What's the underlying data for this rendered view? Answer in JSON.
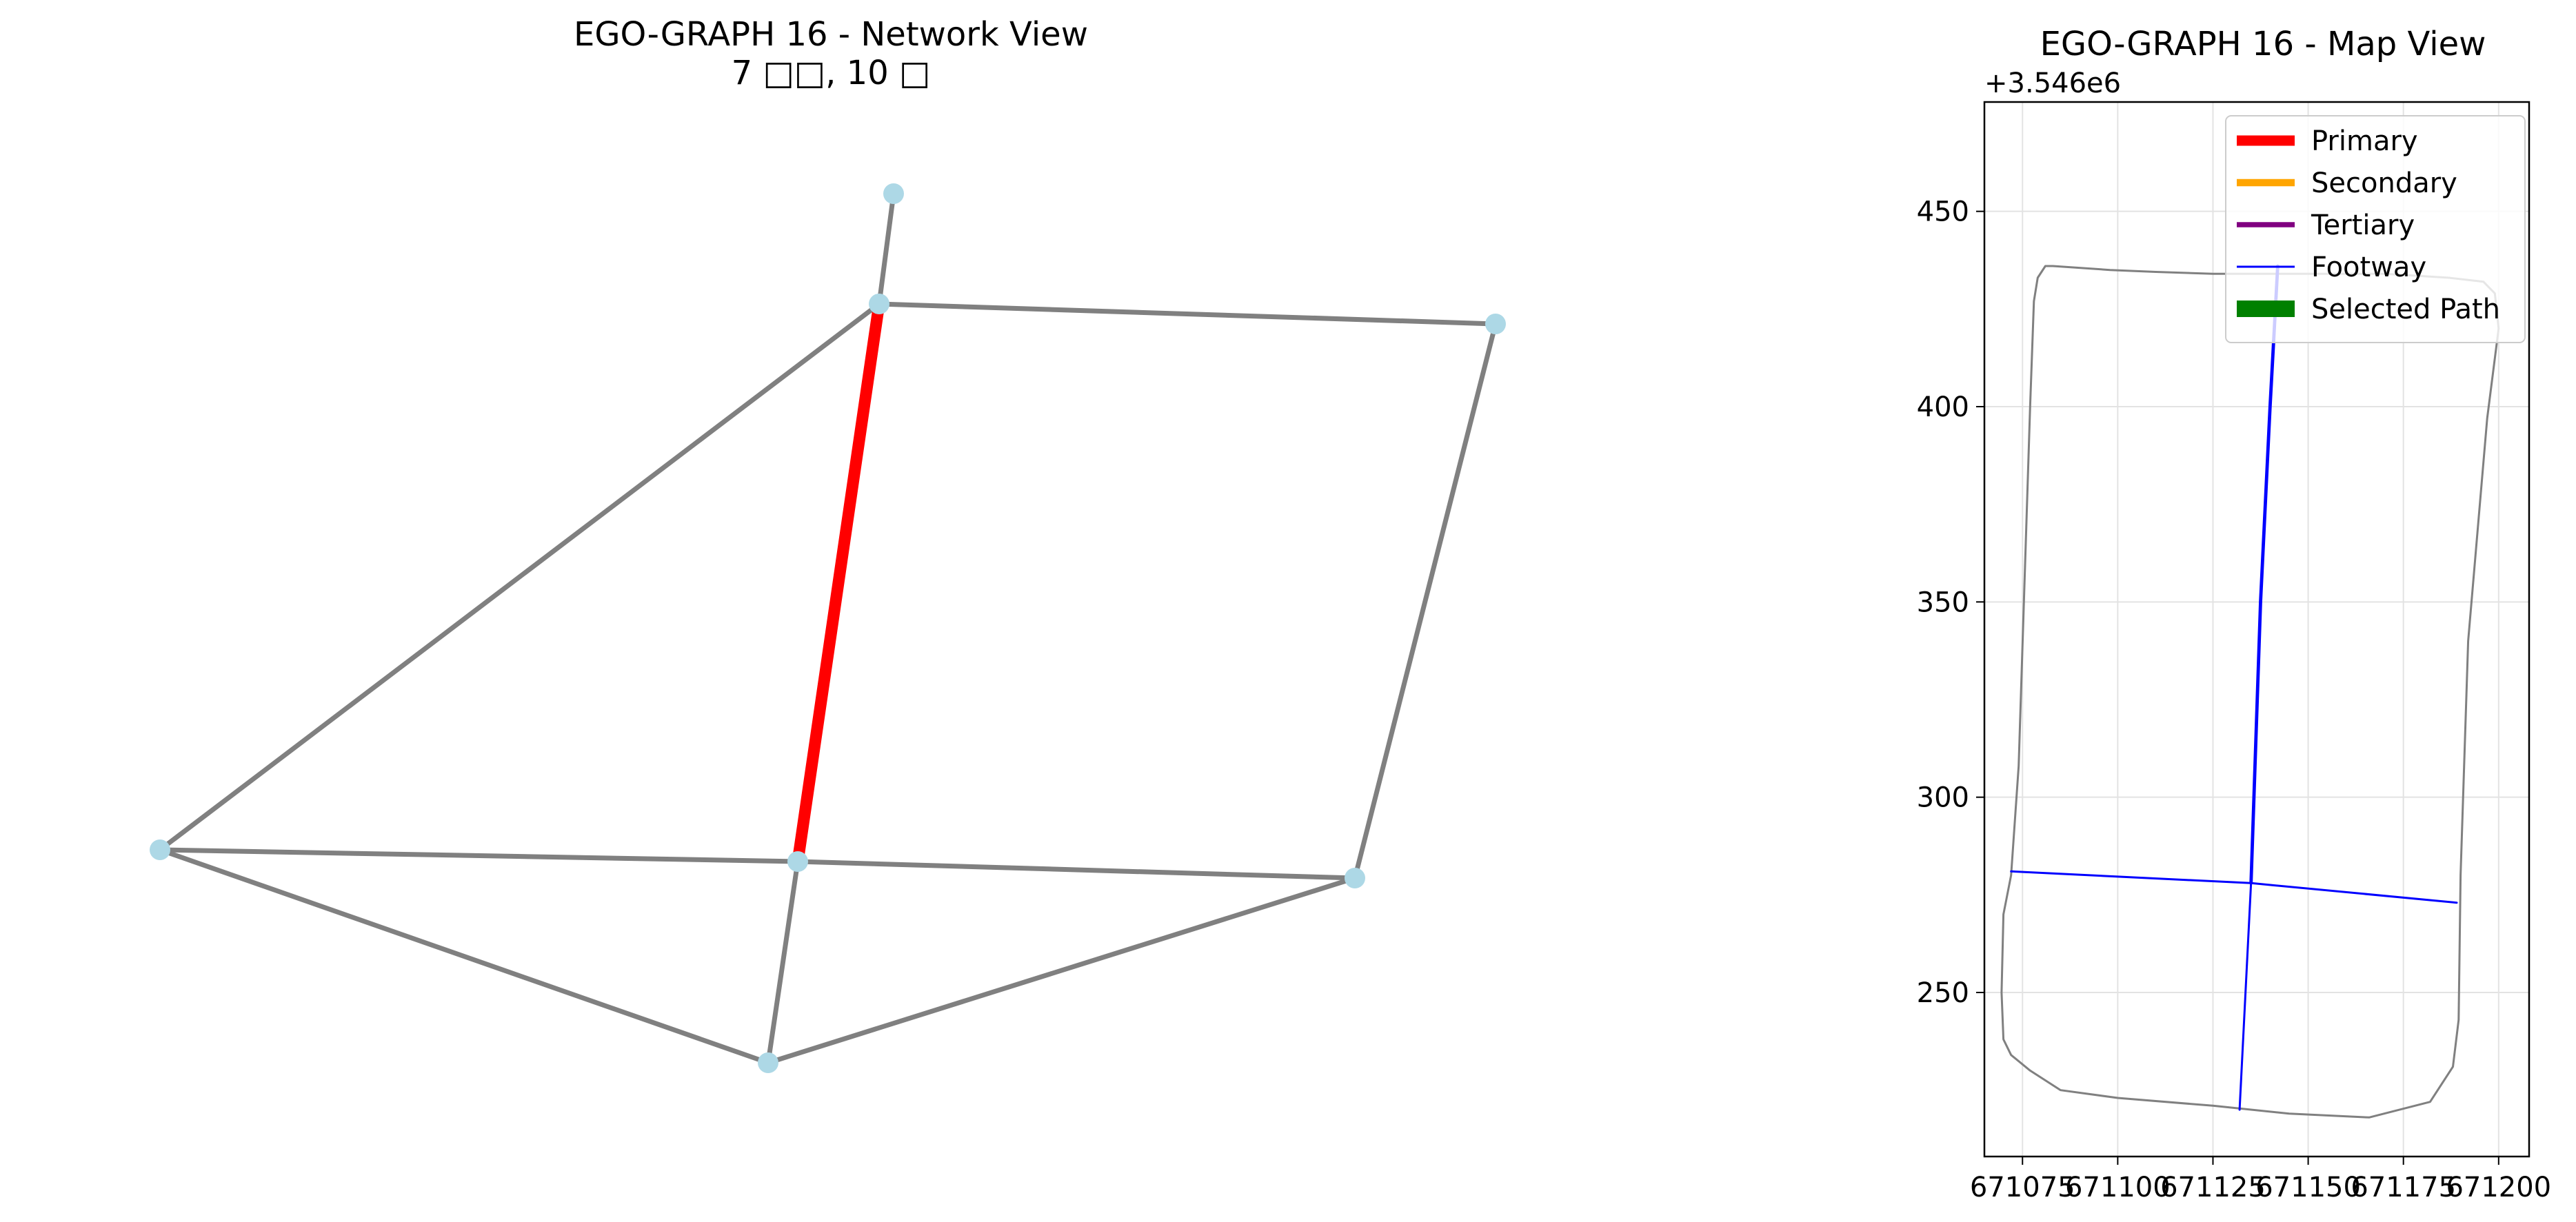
{
  "figure": {
    "network_view": {
      "title_line1": "EGO-GRAPH 16 - Network View",
      "title_line2": "7 □□, 10 □"
    },
    "map_view": {
      "title": "EGO-GRAPH 16 - Map View",
      "offset_label": "+3.546e6"
    }
  },
  "chart_data": [
    {
      "type": "network",
      "title": "EGO-GRAPH 16 - Network View\n7 □□, 10 □",
      "node_color": "#add8e6",
      "edge_color": "#808080",
      "highlight_color": "#ff0000",
      "nodes": [
        {
          "id": "n1"
        },
        {
          "id": "n2"
        },
        {
          "id": "n3"
        },
        {
          "id": "n4"
        },
        {
          "id": "n5"
        },
        {
          "id": "n6"
        },
        {
          "id": "n7"
        }
      ],
      "edges": [
        {
          "source": "n1",
          "target": "n2",
          "highlight": false
        },
        {
          "source": "n2",
          "target": "n3",
          "highlight": false
        },
        {
          "source": "n2",
          "target": "n4",
          "highlight": false
        },
        {
          "source": "n2",
          "target": "n5",
          "highlight": true
        },
        {
          "source": "n3",
          "target": "n7",
          "highlight": false
        },
        {
          "source": "n4",
          "target": "n5",
          "highlight": false
        },
        {
          "source": "n4",
          "target": "n6",
          "highlight": false
        },
        {
          "source": "n5",
          "target": "n7",
          "highlight": false
        },
        {
          "source": "n5",
          "target": "n6",
          "highlight": false
        },
        {
          "source": "n6",
          "target": "n7",
          "highlight": false
        }
      ]
    },
    {
      "type": "line",
      "title": "EGO-GRAPH 16 - Map View",
      "xlim": [
        671065,
        671208
      ],
      "ylim": [
        3546208,
        3546478
      ],
      "x_ticks": [
        671075,
        671100,
        671125,
        671150,
        671175,
        671200
      ],
      "y_ticks": [
        250,
        300,
        350,
        400,
        450
      ],
      "y_offset_label": "+3.546e6",
      "grid": true,
      "legend_position": "top-right",
      "legend": [
        {
          "label": "Primary",
          "color": "#ff0000",
          "width": 5
        },
        {
          "label": "Secondary",
          "color": "#ffa500",
          "width": 3.5
        },
        {
          "label": "Tertiary",
          "color": "#800080",
          "width": 2.5
        },
        {
          "label": "Footway",
          "color": "#0000ff",
          "width": 1
        },
        {
          "label": "Selected Path",
          "color": "#008000",
          "width": 8
        }
      ],
      "series": [
        {
          "kind": "boundary",
          "color": "#808080",
          "width": 1,
          "points": [
            [
              671074,
              3546308
            ],
            [
              671077,
              3546400
            ],
            [
              671078,
              3546427
            ],
            [
              671079,
              3546433
            ],
            [
              671081,
              3546436
            ],
            [
              671083,
              3546436
            ],
            [
              671098,
              3546435
            ],
            [
              671110,
              3546434.5
            ],
            [
              671125,
              3546434
            ],
            [
              671140,
              3546434
            ],
            [
              671170,
              3546434
            ],
            [
              671187,
              3546433
            ],
            [
              671196,
              3546432
            ],
            [
              671199,
              3546429
            ],
            [
              671200,
              3546420
            ],
            [
              671197,
              3546397
            ],
            [
              671192,
              3546340
            ],
            [
              671190,
              3546280
            ],
            [
              671189.5,
              3546243
            ],
            [
              671188,
              3546231
            ],
            [
              671182,
              3546222
            ],
            [
              671166,
              3546218
            ],
            [
              671145,
              3546219
            ],
            [
              671125,
              3546221
            ],
            [
              671100,
              3546223
            ],
            [
              671085,
              3546225
            ],
            [
              671077,
              3546230
            ],
            [
              671072,
              3546234
            ],
            [
              671070,
              3546238
            ],
            [
              671069.5,
              3546250
            ],
            [
              671070,
              3546270
            ],
            [
              671072,
              3546280
            ],
            [
              671074,
              3546308
            ]
          ]
        },
        {
          "kind": "footway",
          "color": "#0000ff",
          "width": 1,
          "points": [
            [
              671072,
              3546281
            ],
            [
              671135,
              3546278
            ],
            [
              671189,
              3546273
            ]
          ]
        },
        {
          "kind": "footway",
          "color": "#0000ff",
          "width": 1,
          "points": [
            [
              671132,
              3546220
            ],
            [
              671135,
              3546278
            ]
          ]
        },
        {
          "kind": "footway",
          "color": "#0000ff",
          "width": 1.6,
          "points": [
            [
              671135,
              3546278
            ],
            [
              671137.5,
              3546350
            ],
            [
              671140,
              3546400
            ],
            [
              671142,
              3546436
            ]
          ]
        }
      ]
    }
  ]
}
